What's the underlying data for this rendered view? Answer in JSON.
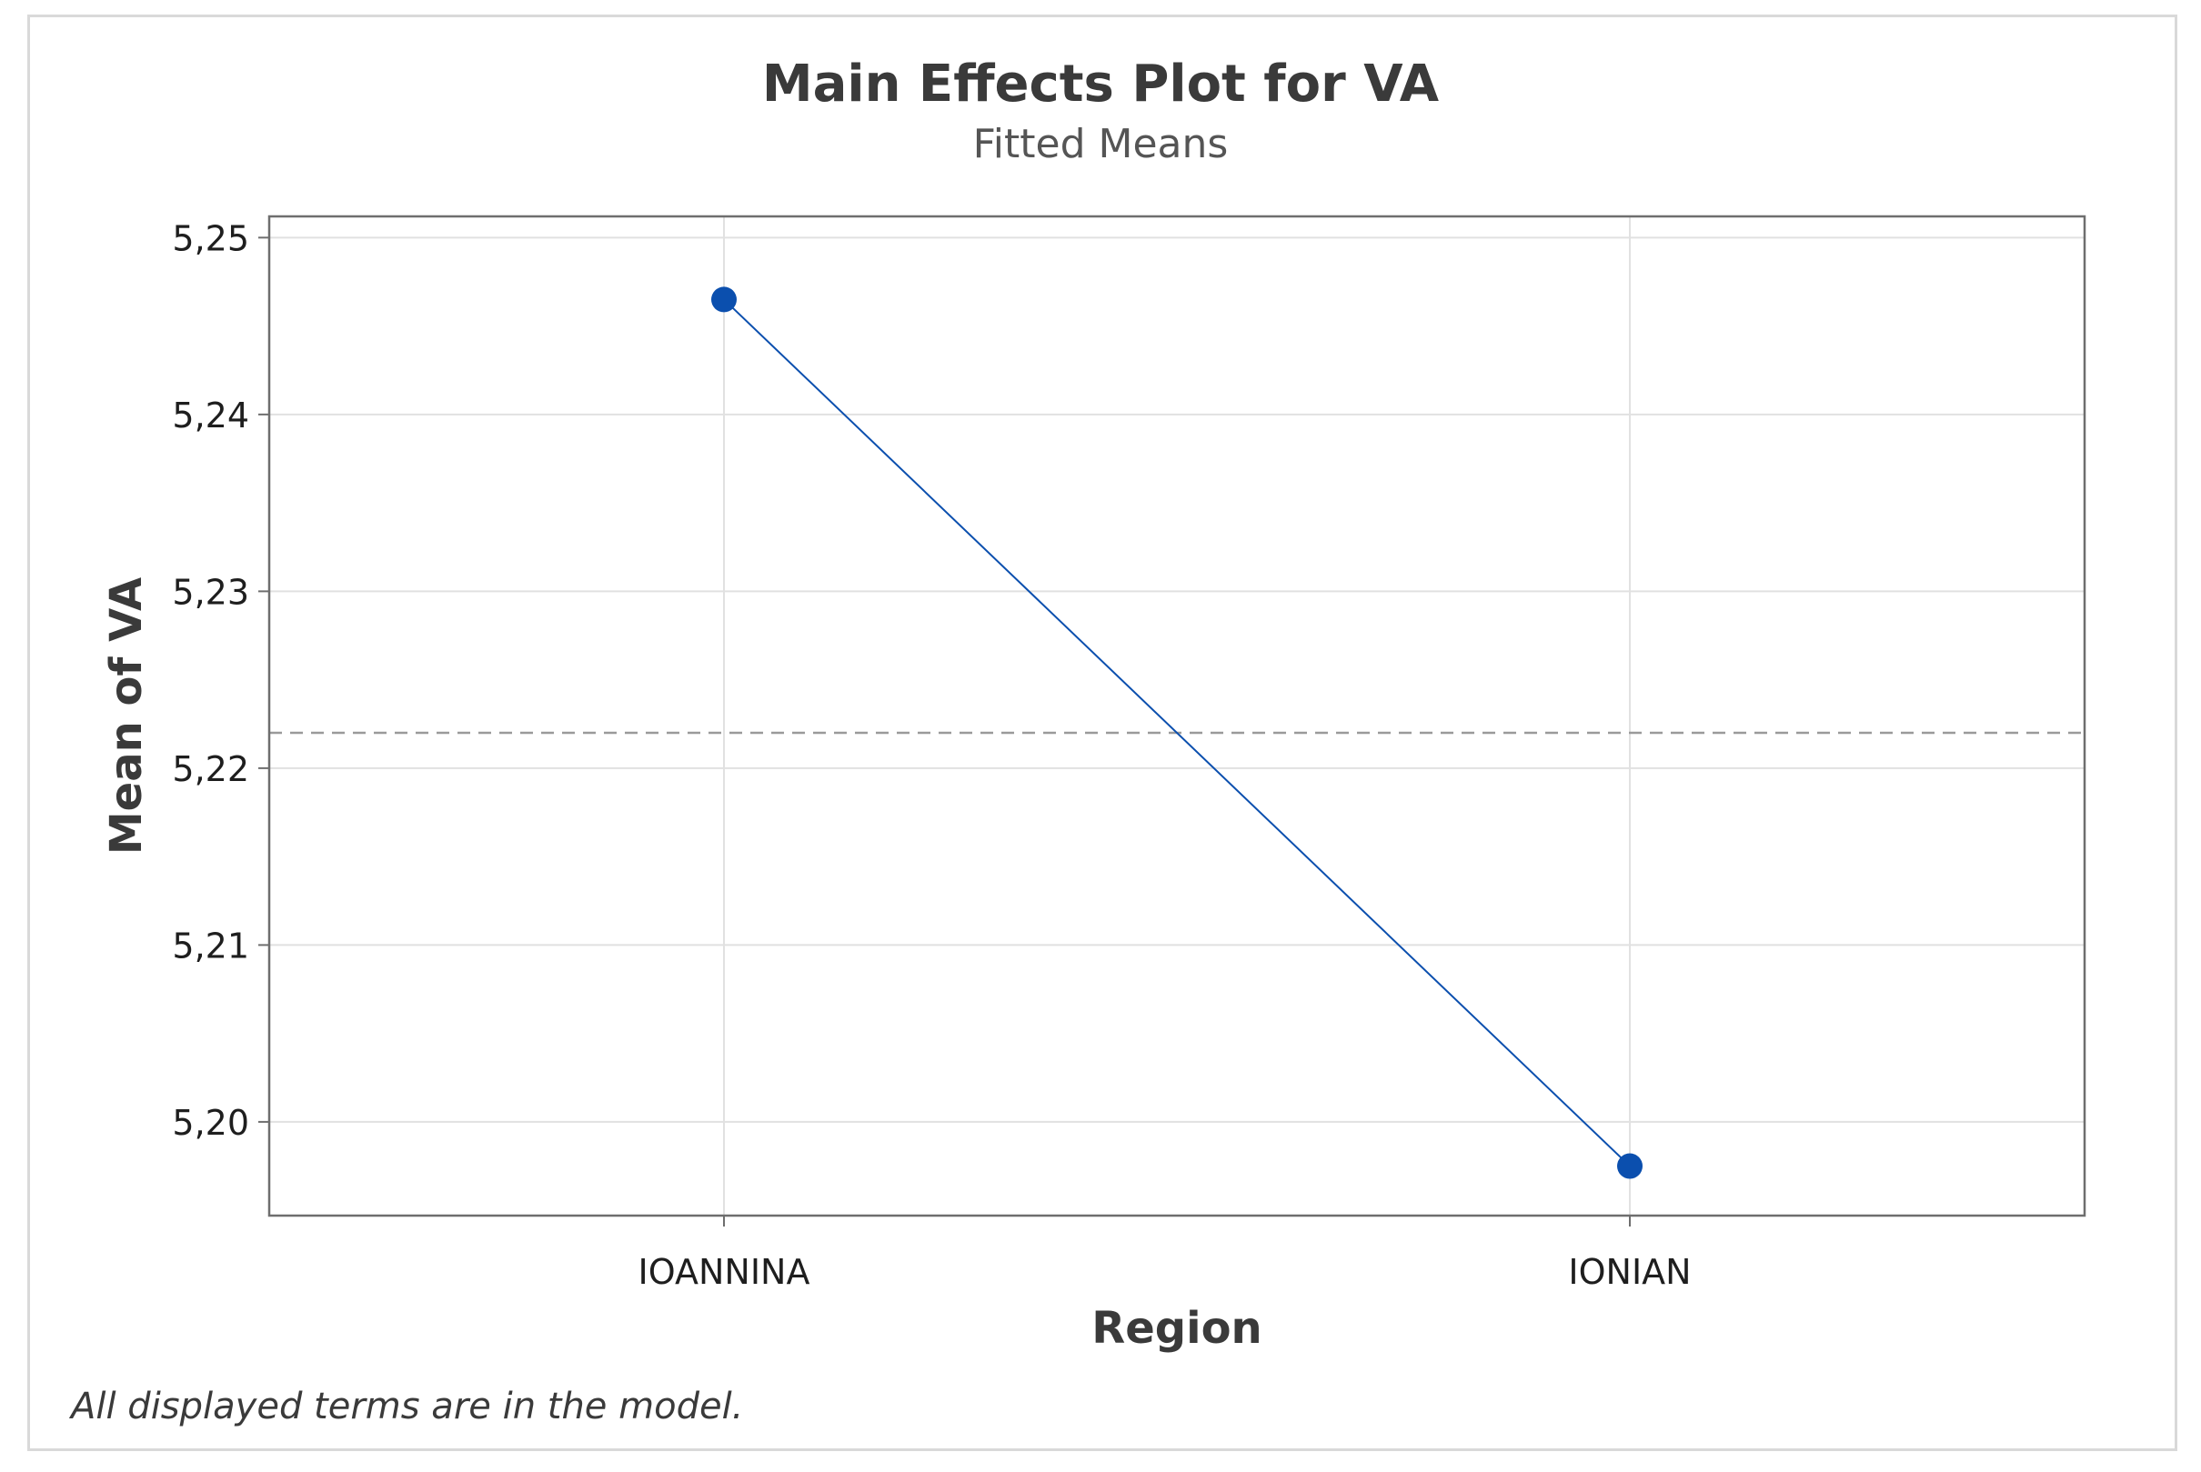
{
  "chart_data": {
    "type": "line",
    "title": "Main Effects Plot for VA",
    "subtitle": "Fitted Means",
    "xlabel": "Region",
    "ylabel": "Mean of VA",
    "categories": [
      "IOANNINA",
      "IONIAN"
    ],
    "series": [
      {
        "name": "VA",
        "values": [
          5.2465,
          5.1975
        ]
      }
    ],
    "reference_line": 5.222,
    "ylim": [
      5.1947,
      5.2512
    ],
    "yticks": [
      5.2,
      5.21,
      5.22,
      5.23,
      5.24,
      5.25
    ],
    "ytick_labels": [
      "5,20",
      "5,21",
      "5,22",
      "5,23",
      "5,24",
      "5,25"
    ],
    "grid": true,
    "footnote": "All displayed terms are in the model.",
    "colors": {
      "series": "#0b4fae",
      "reference": "#9a9a9a",
      "grid": "#e1e1e1",
      "axis": "#6e6e6e"
    }
  }
}
